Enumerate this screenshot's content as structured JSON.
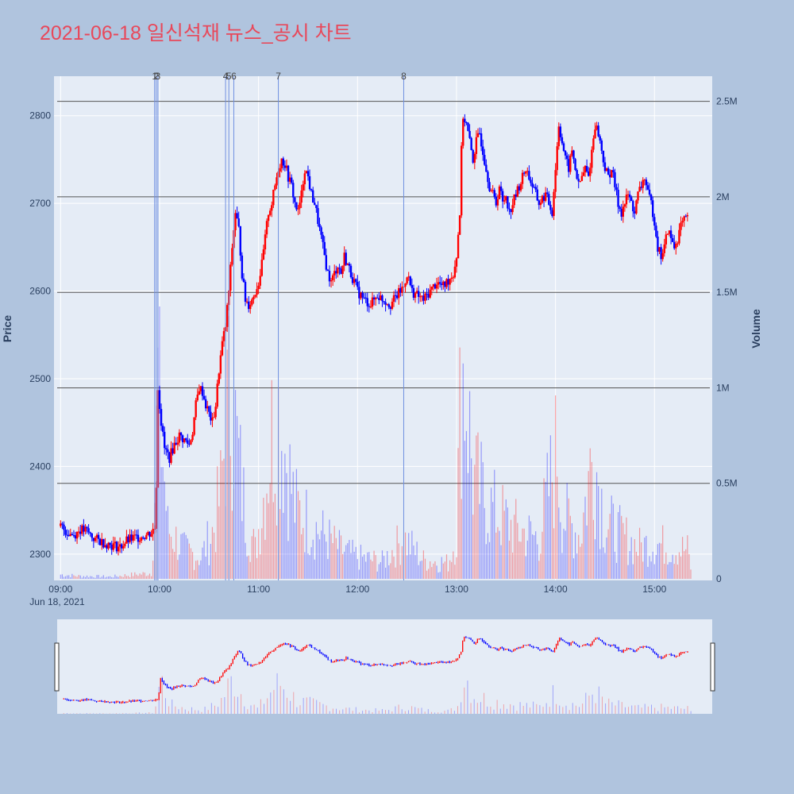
{
  "title": "2021-06-18 일신석재 뉴스_공시 차트",
  "colors": {
    "background": "#b0c4de",
    "plot_bg": "#e5ecf6",
    "up": "#ff0000",
    "down": "#0000ff",
    "title": "#e8485a",
    "grid": "#ffffff",
    "hline": "#555555",
    "marker": "#6f8fe0"
  },
  "chart_data": {
    "type": "candlestick",
    "title": "2021-06-18 일신석재 뉴스_공시 차트",
    "date_label": "Jun 18, 2021",
    "ylabel": "Price",
    "y2label": "Volume",
    "price_range": [
      2270,
      2845
    ],
    "volume_range": [
      0,
      2590000
    ],
    "x_range_minutes": [
      "09:00",
      "15:30"
    ],
    "price_ticks": [
      2300,
      2400,
      2500,
      2600,
      2700,
      2800
    ],
    "volume_ticks": [
      {
        "value": 0,
        "label": "0"
      },
      {
        "value": 500000,
        "label": "0.5M"
      },
      {
        "value": 1000000,
        "label": "1M"
      },
      {
        "value": 1500000,
        "label": "1.5M"
      },
      {
        "value": 2000000,
        "label": "2M"
      },
      {
        "value": 2500000,
        "label": "2.5M"
      }
    ],
    "time_ticks": [
      "09:00",
      "10:00",
      "11:00",
      "12:00",
      "13:00",
      "14:00",
      "15:00"
    ],
    "news_markers": [
      {
        "label": "1",
        "time": "09:57"
      },
      {
        "label": "2",
        "time": "09:58"
      },
      {
        "label": "3",
        "time": "09:59"
      },
      {
        "label": "4",
        "time": "10:40"
      },
      {
        "label": "5",
        "time": "10:42"
      },
      {
        "label": "6",
        "time": "10:45"
      },
      {
        "label": "7",
        "time": "11:12"
      },
      {
        "label": "8",
        "time": "12:28"
      }
    ],
    "price_path": [
      [
        "09:00",
        2332
      ],
      [
        "09:04",
        2325
      ],
      [
        "09:08",
        2322
      ],
      [
        "09:12",
        2328
      ],
      [
        "09:16",
        2326
      ],
      [
        "09:20",
        2318
      ],
      [
        "09:24",
        2315
      ],
      [
        "09:28",
        2312
      ],
      [
        "09:32",
        2310
      ],
      [
        "09:36",
        2308
      ],
      [
        "09:40",
        2315
      ],
      [
        "09:44",
        2318
      ],
      [
        "09:48",
        2320
      ],
      [
        "09:52",
        2322
      ],
      [
        "09:55",
        2325
      ],
      [
        "09:57",
        2330
      ],
      [
        "09:58",
        2380
      ],
      [
        "09:59",
        2490
      ],
      [
        "10:01",
        2450
      ],
      [
        "10:03",
        2420
      ],
      [
        "10:06",
        2410
      ],
      [
        "10:09",
        2425
      ],
      [
        "10:12",
        2435
      ],
      [
        "10:15",
        2430
      ],
      [
        "10:18",
        2425
      ],
      [
        "10:20",
        2440
      ],
      [
        "10:22",
        2470
      ],
      [
        "10:24",
        2490
      ],
      [
        "10:26",
        2485
      ],
      [
        "10:28",
        2470
      ],
      [
        "10:30",
        2460
      ],
      [
        "10:32",
        2450
      ],
      [
        "10:34",
        2470
      ],
      [
        "10:36",
        2510
      ],
      [
        "10:38",
        2540
      ],
      [
        "10:40",
        2560
      ],
      [
        "10:42",
        2600
      ],
      [
        "10:44",
        2650
      ],
      [
        "10:46",
        2690
      ],
      [
        "10:48",
        2670
      ],
      [
        "10:50",
        2620
      ],
      [
        "10:52",
        2590
      ],
      [
        "10:54",
        2585
      ],
      [
        "10:56",
        2590
      ],
      [
        "10:58",
        2600
      ],
      [
        "11:00",
        2610
      ],
      [
        "11:02",
        2630
      ],
      [
        "11:04",
        2660
      ],
      [
        "11:06",
        2690
      ],
      [
        "11:08",
        2700
      ],
      [
        "11:10",
        2720
      ],
      [
        "11:12",
        2740
      ],
      [
        "11:14",
        2750
      ],
      [
        "11:16",
        2745
      ],
      [
        "11:18",
        2730
      ],
      [
        "11:20",
        2720
      ],
      [
        "11:22",
        2700
      ],
      [
        "11:24",
        2690
      ],
      [
        "11:26",
        2710
      ],
      [
        "11:28",
        2740
      ],
      [
        "11:30",
        2730
      ],
      [
        "11:32",
        2710
      ],
      [
        "11:34",
        2700
      ],
      [
        "11:36",
        2680
      ],
      [
        "11:38",
        2660
      ],
      [
        "11:40",
        2640
      ],
      [
        "11:42",
        2620
      ],
      [
        "11:44",
        2610
      ],
      [
        "11:46",
        2620
      ],
      [
        "11:48",
        2630
      ],
      [
        "11:50",
        2620
      ],
      [
        "11:52",
        2640
      ],
      [
        "11:54",
        2630
      ],
      [
        "11:56",
        2620
      ],
      [
        "11:58",
        2610
      ],
      [
        "12:00",
        2600
      ],
      [
        "12:04",
        2590
      ],
      [
        "12:08",
        2585
      ],
      [
        "12:12",
        2595
      ],
      [
        "12:16",
        2590
      ],
      [
        "12:20",
        2585
      ],
      [
        "12:24",
        2595
      ],
      [
        "12:28",
        2605
      ],
      [
        "12:30",
        2620
      ],
      [
        "12:33",
        2600
      ],
      [
        "12:36",
        2595
      ],
      [
        "12:40",
        2590
      ],
      [
        "12:44",
        2600
      ],
      [
        "12:48",
        2610
      ],
      [
        "12:52",
        2605
      ],
      [
        "12:56",
        2615
      ],
      [
        "12:58",
        2620
      ],
      [
        "13:00",
        2640
      ],
      [
        "13:02",
        2690
      ],
      [
        "13:03",
        2760
      ],
      [
        "13:04",
        2800
      ],
      [
        "13:06",
        2790
      ],
      [
        "13:08",
        2770
      ],
      [
        "13:10",
        2750
      ],
      [
        "13:12",
        2770
      ],
      [
        "13:14",
        2780
      ],
      [
        "13:16",
        2760
      ],
      [
        "13:18",
        2740
      ],
      [
        "13:20",
        2720
      ],
      [
        "13:22",
        2710
      ],
      [
        "13:24",
        2700
      ],
      [
        "13:26",
        2720
      ],
      [
        "13:28",
        2700
      ],
      [
        "13:30",
        2710
      ],
      [
        "13:32",
        2690
      ],
      [
        "13:34",
        2700
      ],
      [
        "13:38",
        2720
      ],
      [
        "13:42",
        2740
      ],
      [
        "13:46",
        2720
      ],
      [
        "13:50",
        2700
      ],
      [
        "13:54",
        2710
      ],
      [
        "13:58",
        2690
      ],
      [
        "14:00",
        2740
      ],
      [
        "14:02",
        2790
      ],
      [
        "14:04",
        2770
      ],
      [
        "14:06",
        2750
      ],
      [
        "14:08",
        2740
      ],
      [
        "14:10",
        2760
      ],
      [
        "14:12",
        2740
      ],
      [
        "14:14",
        2720
      ],
      [
        "14:16",
        2730
      ],
      [
        "14:18",
        2740
      ],
      [
        "14:20",
        2730
      ],
      [
        "14:22",
        2760
      ],
      [
        "14:24",
        2790
      ],
      [
        "14:26",
        2780
      ],
      [
        "14:28",
        2760
      ],
      [
        "14:30",
        2740
      ],
      [
        "14:32",
        2730
      ],
      [
        "14:34",
        2740
      ],
      [
        "14:36",
        2720
      ],
      [
        "14:38",
        2700
      ],
      [
        "14:40",
        2690
      ],
      [
        "14:42",
        2700
      ],
      [
        "14:44",
        2710
      ],
      [
        "14:46",
        2700
      ],
      [
        "14:48",
        2690
      ],
      [
        "14:50",
        2710
      ],
      [
        "14:52",
        2720
      ],
      [
        "14:54",
        2730
      ],
      [
        "14:56",
        2710
      ],
      [
        "14:58",
        2700
      ],
      [
        "15:00",
        2680
      ],
      [
        "15:02",
        2650
      ],
      [
        "15:04",
        2640
      ],
      [
        "15:06",
        2650
      ],
      [
        "15:08",
        2670
      ],
      [
        "15:10",
        2660
      ],
      [
        "15:12",
        2650
      ],
      [
        "15:14",
        2660
      ],
      [
        "15:16",
        2675
      ],
      [
        "15:18",
        2680
      ],
      [
        "15:20",
        2682
      ]
    ],
    "volume_path": [
      [
        "09:00",
        30000
      ],
      [
        "09:10",
        20000
      ],
      [
        "09:30",
        15000
      ],
      [
        "09:55",
        40000
      ],
      [
        "09:57",
        600000
      ],
      [
        "09:59",
        1350000
      ],
      [
        "10:05",
        350000
      ],
      [
        "10:15",
        200000
      ],
      [
        "10:25",
        150000
      ],
      [
        "10:33",
        350000
      ],
      [
        "10:37",
        600000
      ],
      [
        "10:41",
        1150000
      ],
      [
        "10:44",
        1300000
      ],
      [
        "10:47",
        900000
      ],
      [
        "10:52",
        450000
      ],
      [
        "10:58",
        200000
      ],
      [
        "11:04",
        650000
      ],
      [
        "11:08",
        1000000
      ],
      [
        "11:12",
        1150000
      ],
      [
        "11:16",
        900000
      ],
      [
        "11:22",
        500000
      ],
      [
        "11:30",
        400000
      ],
      [
        "11:40",
        300000
      ],
      [
        "11:50",
        200000
      ],
      [
        "12:00",
        150000
      ],
      [
        "12:15",
        120000
      ],
      [
        "12:28",
        280000
      ],
      [
        "12:40",
        130000
      ],
      [
        "12:55",
        110000
      ],
      [
        "13:00",
        300000
      ],
      [
        "13:03",
        1500000
      ],
      [
        "13:06",
        1300000
      ],
      [
        "13:10",
        700000
      ],
      [
        "13:20",
        500000
      ],
      [
        "13:35",
        350000
      ],
      [
        "13:50",
        280000
      ],
      [
        "14:01",
        900000
      ],
      [
        "14:04",
        450000
      ],
      [
        "14:15",
        300000
      ],
      [
        "14:23",
        900000
      ],
      [
        "14:30",
        400000
      ],
      [
        "14:40",
        300000
      ],
      [
        "14:50",
        220000
      ],
      [
        "15:00",
        250000
      ],
      [
        "15:10",
        220000
      ],
      [
        "15:20",
        200000
      ],
      [
        "15:22",
        80000
      ]
    ]
  }
}
